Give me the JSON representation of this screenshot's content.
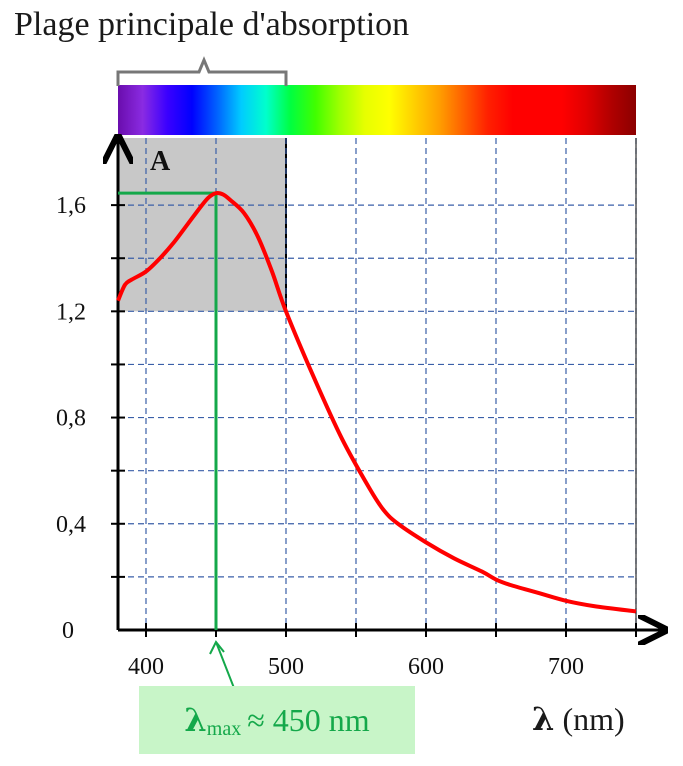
{
  "title": "Plage principale d'absorption",
  "chart_data": {
    "type": "line",
    "ylabel": "A",
    "xlabel_symbol": "λ",
    "xlabel_unit": "(nm)",
    "xlim": [
      380,
      750
    ],
    "ylim": [
      0,
      1.8
    ],
    "x_ticks": [
      400,
      500,
      600,
      700
    ],
    "y_ticks": [
      {
        "value": 0,
        "label": "0"
      },
      {
        "value": 0.4,
        "label": "0,4"
      },
      {
        "value": 0.8,
        "label": "0,8"
      },
      {
        "value": 1.2,
        "label": "1,2"
      },
      {
        "value": 1.6,
        "label": "1,6"
      }
    ],
    "grid": true,
    "series": [
      {
        "color": "#ff0000",
        "x": [
          380,
          385,
          390,
          400,
          410,
          420,
          430,
          440,
          445,
          450,
          455,
          460,
          470,
          480,
          490,
          500,
          520,
          540,
          560,
          570,
          580,
          600,
          620,
          640,
          650,
          660,
          680,
          700,
          720,
          750
        ],
        "y": [
          1.24,
          1.3,
          1.32,
          1.35,
          1.4,
          1.46,
          1.53,
          1.6,
          1.63,
          1.645,
          1.64,
          1.62,
          1.57,
          1.48,
          1.35,
          1.2,
          0.95,
          0.72,
          0.53,
          0.45,
          0.4,
          0.33,
          0.27,
          0.22,
          0.19,
          0.17,
          0.14,
          0.11,
          0.09,
          0.07
        ]
      }
    ],
    "absorption_range": [
      380,
      500
    ],
    "lambda_max": {
      "x": 450,
      "y": 1.645,
      "label": "≈ 450 nm",
      "label_sub": "max",
      "color": "#14a84a"
    },
    "spectrum_colors": [
      "#6a0dad",
      "#8a2be2",
      "#3a00ff",
      "#0000ff",
      "#0060ff",
      "#00ccff",
      "#00ffcc",
      "#00ff40",
      "#40ff00",
      "#a0ff00",
      "#e6ff00",
      "#ffff00",
      "#ffd000",
      "#ffa000",
      "#ff6000",
      "#ff2000",
      "#ff0000",
      "#ff0000",
      "#ff0000",
      "#e00000",
      "#b00000",
      "#8b0000"
    ],
    "shade_color": "#c8c8c8",
    "grid_color": "#3a5fa8"
  }
}
